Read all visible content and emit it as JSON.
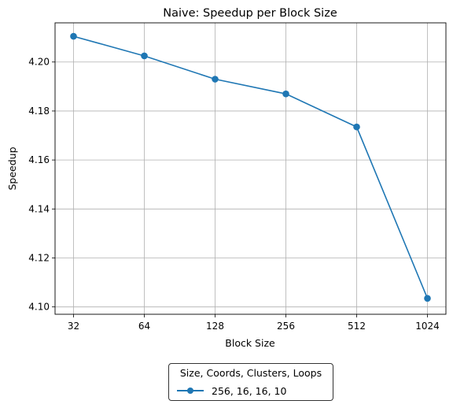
{
  "chart_data": {
    "type": "line",
    "title": "Naive: Speedup per Block Size",
    "xlabel": "Block Size",
    "ylabel": "Speedup",
    "categories": [
      "32",
      "64",
      "128",
      "256",
      "512",
      "1024"
    ],
    "ylim": [
      4.097,
      4.216
    ],
    "yticks": [
      "4.10",
      "4.12",
      "4.14",
      "4.16",
      "4.18",
      "4.20"
    ],
    "grid": true,
    "legend": {
      "title": "Size, Coords, Clusters, Loops",
      "placement": "bottom-center, below axes"
    },
    "series": [
      {
        "name": "256, 16, 16, 10",
        "color": "#1f77b4",
        "marker": "circle",
        "values": [
          4.2105,
          4.2025,
          4.193,
          4.187,
          4.1735,
          4.1035
        ]
      }
    ]
  }
}
